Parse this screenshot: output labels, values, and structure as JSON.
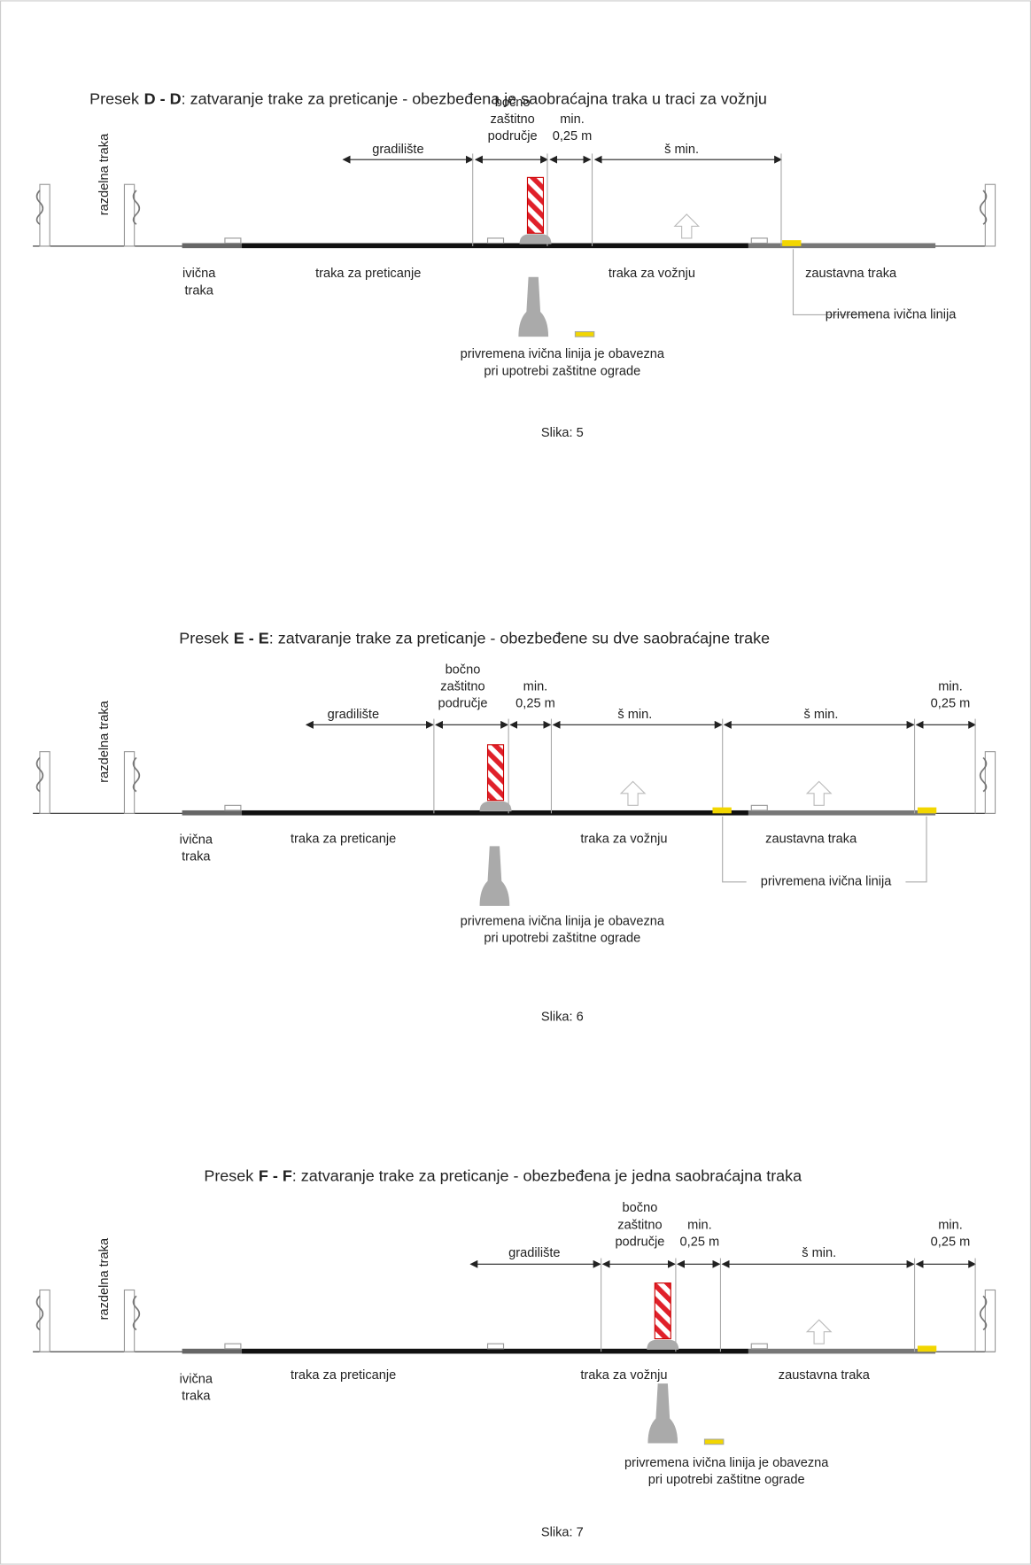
{
  "sections": [
    {
      "title": {
        "prefix": "Presek",
        "code": "D - D",
        "text": ":  zatvaranje trake za preticanje - obezbeđena je saobraćajna traka u traci za vožnju"
      },
      "labels": [
        {
          "lines": [
            "razdelna traka"
          ]
        },
        {
          "lines": [
            "gradilište"
          ]
        },
        {
          "lines": [
            "bočno",
            "zaštitno",
            "područje"
          ]
        },
        {
          "lines": [
            "min.",
            "0,25 m"
          ]
        },
        {
          "lines": [
            "š min."
          ]
        },
        {
          "lines": [
            "ivična",
            "traka"
          ]
        },
        {
          "lines": [
            "traka za preticanje"
          ]
        },
        {
          "lines": [
            "traka za vožnju"
          ]
        },
        {
          "lines": [
            "zaustavna traka"
          ]
        },
        {
          "lines": [
            "privremena ivična linija"
          ]
        },
        {
          "lines": [
            "privremena ivična linija je obavezna",
            "pri upotrebi zaštitne ograde"
          ]
        }
      ],
      "caption": "Slika: 5"
    },
    {
      "title": {
        "prefix": "Presek",
        "code": "E - E",
        "text": ":  zatvaranje trake za preticanje - obezbeđene su dve saobraćajne trake"
      },
      "labels": [
        {
          "lines": [
            "razdelna traka"
          ]
        },
        {
          "lines": [
            "gradilište"
          ]
        },
        {
          "lines": [
            "bočno",
            "zaštitno",
            "područje"
          ]
        },
        {
          "lines": [
            "min.",
            "0,25 m"
          ]
        },
        {
          "lines": [
            "š min."
          ]
        },
        {
          "lines": [
            "š min."
          ]
        },
        {
          "lines": [
            "min.",
            "0,25 m"
          ]
        },
        {
          "lines": [
            "ivična",
            "traka"
          ]
        },
        {
          "lines": [
            "traka za preticanje"
          ]
        },
        {
          "lines": [
            "traka za vožnju"
          ]
        },
        {
          "lines": [
            "zaustavna traka"
          ]
        },
        {
          "lines": [
            "privremena ivična linija"
          ]
        },
        {
          "lines": [
            "privremena ivična linija je obavezna",
            "pri upotrebi zaštitne ograde"
          ]
        }
      ],
      "caption": "Slika: 6"
    },
    {
      "title": {
        "prefix": "Presek",
        "code": "F - F",
        "text": ":  zatvaranje trake za preticanje - obezbeđena je jedna saobraćajna traka"
      },
      "labels": [
        {
          "lines": [
            "razdelna traka"
          ]
        },
        {
          "lines": [
            "bočno",
            "zaštitno",
            "područje"
          ]
        },
        {
          "lines": [
            "min.",
            "0,25 m"
          ]
        },
        {
          "lines": [
            "min.",
            "0,25 m"
          ]
        },
        {
          "lines": [
            "gradilište"
          ]
        },
        {
          "lines": [
            "š min."
          ]
        },
        {
          "lines": [
            "ivična",
            "traka"
          ]
        },
        {
          "lines": [
            "traka za preticanje"
          ]
        },
        {
          "lines": [
            "traka za vožnju"
          ]
        },
        {
          "lines": [
            "zaustavna traka"
          ]
        },
        {
          "lines": [
            "privremena ivična linija je obavezna",
            "pri upotrebi zaštitne ograde"
          ]
        }
      ],
      "caption": "Slika: 7"
    }
  ]
}
